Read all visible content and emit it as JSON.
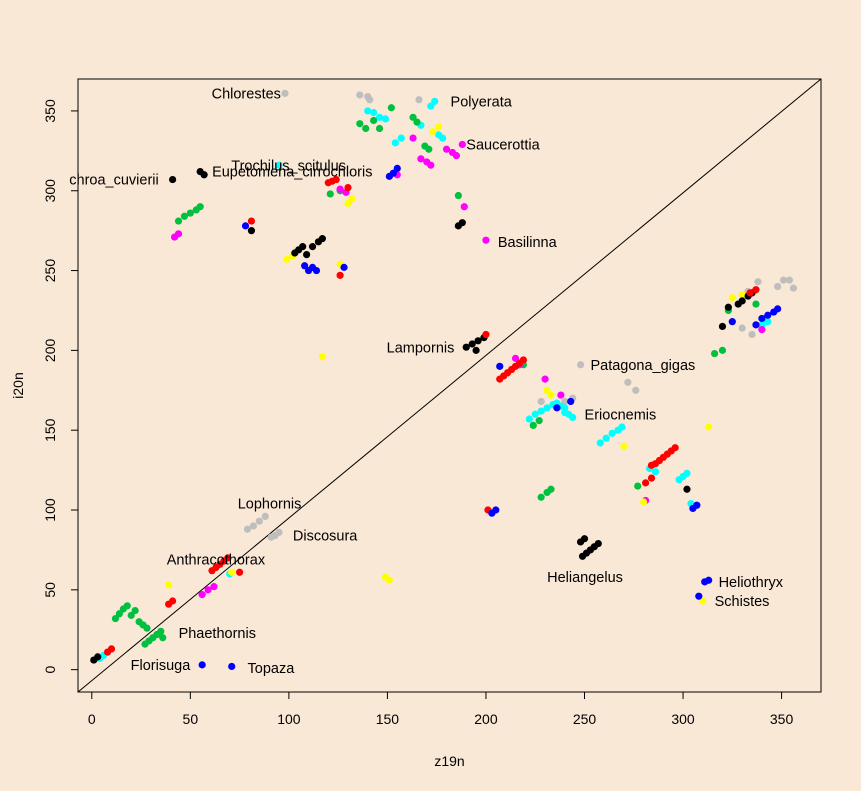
{
  "colors": {
    "background": "#FAE8D6",
    "black": "#000000",
    "red": "#FF0000",
    "green": "#00C040",
    "blue": "#0000FF",
    "cyan": "#00FFFF",
    "magenta": "#FF00FF",
    "yellow": "#FFFF00",
    "gray": "#BEBEBE"
  },
  "chart_data": {
    "type": "scatter",
    "title": "",
    "xlabel": "z19n",
    "ylabel": "i20n",
    "xlim": [
      -7,
      370
    ],
    "ylim": [
      -14,
      370
    ],
    "xticks": [
      0,
      50,
      100,
      150,
      200,
      250,
      300,
      350
    ],
    "yticks": [
      0,
      50,
      100,
      150,
      200,
      250,
      300,
      350
    ],
    "grid": false,
    "reference_line": {
      "type": "identity",
      "from": [
        -7,
        -14
      ],
      "to": [
        370,
        370
      ]
    },
    "annotations": [
      {
        "text": "Chlorestes",
        "x": 98,
        "y": 361,
        "anchor": "end"
      },
      {
        "text": "Polyerata",
        "x": 180,
        "y": 356,
        "anchor": "start"
      },
      {
        "text": "Saucerottia",
        "x": 188,
        "y": 329,
        "anchor": "start"
      },
      {
        "text": "Trochilus_scitulus",
        "x": 131,
        "y": 316,
        "anchor": "end"
      },
      {
        "text": "Eupetomena_cirrochloris",
        "x": 59,
        "y": 312,
        "anchor": "start"
      },
      {
        "text": "chroa_cuvierii",
        "x": 36,
        "y": 307,
        "anchor": "end"
      },
      {
        "text": "Basilinna",
        "x": 204,
        "y": 268,
        "anchor": "start"
      },
      {
        "text": "Lampornis",
        "x": 186,
        "y": 202,
        "anchor": "end"
      },
      {
        "text": "Patagona_gigas",
        "x": 251,
        "y": 191,
        "anchor": "start"
      },
      {
        "text": "Eriocnemis",
        "x": 248,
        "y": 160,
        "anchor": "start"
      },
      {
        "text": "Lophornis",
        "x": 72,
        "y": 104,
        "anchor": "start"
      },
      {
        "text": "Discosura",
        "x": 100,
        "y": 84,
        "anchor": "start"
      },
      {
        "text": "Anthracothorax",
        "x": 36,
        "y": 69,
        "anchor": "start"
      },
      {
        "text": "Heliangelus",
        "x": 229,
        "y": 58,
        "anchor": "start"
      },
      {
        "text": "Heliothryx",
        "x": 316,
        "y": 55,
        "anchor": "start"
      },
      {
        "text": "Schistes",
        "x": 314,
        "y": 43,
        "anchor": "start"
      },
      {
        "text": "Phaethornis",
        "x": 42,
        "y": 23,
        "anchor": "start"
      },
      {
        "text": "Florisuga",
        "x": 52,
        "y": 3,
        "anchor": "end"
      },
      {
        "text": "Topaza",
        "x": 77,
        "y": 1,
        "anchor": "start"
      }
    ],
    "series": [
      {
        "color": "gray",
        "points": [
          [
            98,
            361
          ],
          [
            136,
            360
          ],
          [
            140,
            359
          ],
          [
            141,
            357
          ],
          [
            166,
            357
          ],
          [
            228,
            168
          ],
          [
            240,
            168
          ],
          [
            244,
            170
          ],
          [
            248,
            191
          ],
          [
            272,
            180
          ],
          [
            276,
            175
          ],
          [
            338,
            243
          ],
          [
            333,
            237
          ],
          [
            330,
            214
          ],
          [
            335,
            210
          ],
          [
            348,
            240
          ],
          [
            351,
            244
          ],
          [
            354,
            244
          ],
          [
            356,
            239
          ],
          [
            79,
            88
          ],
          [
            82,
            90
          ],
          [
            85,
            93
          ],
          [
            88,
            96
          ],
          [
            91,
            83
          ],
          [
            93,
            84
          ],
          [
            95,
            86
          ]
        ]
      },
      {
        "color": "cyan",
        "points": [
          [
            140,
            350
          ],
          [
            143,
            349
          ],
          [
            146,
            346
          ],
          [
            149,
            345
          ],
          [
            154,
            330
          ],
          [
            157,
            333
          ],
          [
            167,
            341
          ],
          [
            172,
            353
          ],
          [
            174,
            356
          ],
          [
            176,
            335
          ],
          [
            178,
            333
          ],
          [
            95,
            316
          ],
          [
            222,
            157
          ],
          [
            225,
            160
          ],
          [
            228,
            162
          ],
          [
            231,
            164
          ],
          [
            234,
            166
          ],
          [
            236,
            167
          ],
          [
            238,
            165
          ],
          [
            240,
            164
          ],
          [
            240,
            161
          ],
          [
            242,
            160
          ],
          [
            244,
            158
          ],
          [
            258,
            142
          ],
          [
            261,
            145
          ],
          [
            264,
            148
          ],
          [
            267,
            150
          ],
          [
            269,
            152
          ],
          [
            283,
            126
          ],
          [
            286,
            124
          ],
          [
            298,
            119
          ],
          [
            300,
            121
          ],
          [
            302,
            123
          ],
          [
            304,
            104
          ],
          [
            340,
            216
          ],
          [
            343,
            218
          ],
          [
            70,
            60
          ],
          [
            4,
            7
          ],
          [
            6,
            9
          ]
        ]
      },
      {
        "color": "green",
        "points": [
          [
            136,
            342
          ],
          [
            139,
            339
          ],
          [
            143,
            344
          ],
          [
            146,
            339
          ],
          [
            152,
            352
          ],
          [
            163,
            346
          ],
          [
            165,
            343
          ],
          [
            169,
            328
          ],
          [
            171,
            326
          ],
          [
            186,
            297
          ],
          [
            121,
            298
          ],
          [
            126,
            300
          ],
          [
            44,
            281
          ],
          [
            47,
            284
          ],
          [
            50,
            286
          ],
          [
            53,
            288
          ],
          [
            55,
            290
          ],
          [
            224,
            153
          ],
          [
            227,
            156
          ],
          [
            219,
            191
          ],
          [
            228,
            108
          ],
          [
            231,
            111
          ],
          [
            233,
            113
          ],
          [
            277,
            115
          ],
          [
            320,
            200
          ],
          [
            323,
            225
          ],
          [
            337,
            229
          ],
          [
            316,
            198
          ],
          [
            12,
            32
          ],
          [
            14,
            35
          ],
          [
            16,
            38
          ],
          [
            18,
            40
          ],
          [
            20,
            34
          ],
          [
            22,
            37
          ],
          [
            24,
            30
          ],
          [
            26,
            28
          ],
          [
            28,
            26
          ],
          [
            27,
            16
          ],
          [
            29,
            18
          ],
          [
            31,
            20
          ],
          [
            33,
            22
          ],
          [
            35,
            24
          ],
          [
            36,
            20
          ]
        ]
      },
      {
        "color": "magenta",
        "points": [
          [
            163,
            333
          ],
          [
            167,
            320
          ],
          [
            170,
            318
          ],
          [
            172,
            316
          ],
          [
            180,
            326
          ],
          [
            183,
            324
          ],
          [
            185,
            322
          ],
          [
            188,
            329
          ],
          [
            189,
            290
          ],
          [
            126,
            301
          ],
          [
            129,
            299
          ],
          [
            155,
            310
          ],
          [
            42,
            271
          ],
          [
            44,
            273
          ],
          [
            200,
            269
          ],
          [
            215,
            195
          ],
          [
            217,
            191
          ],
          [
            230,
            182
          ],
          [
            238,
            172
          ],
          [
            281,
            106
          ],
          [
            340,
            213
          ],
          [
            56,
            47
          ],
          [
            59,
            50
          ],
          [
            62,
            52
          ]
        ]
      },
      {
        "color": "yellow",
        "points": [
          [
            173,
            337
          ],
          [
            176,
            340
          ],
          [
            130,
            292
          ],
          [
            132,
            295
          ],
          [
            99,
            257
          ],
          [
            102,
            259
          ],
          [
            117,
            196
          ],
          [
            126,
            254
          ],
          [
            231,
            175
          ],
          [
            233,
            172
          ],
          [
            270,
            140
          ],
          [
            280,
            105
          ],
          [
            313,
            152
          ],
          [
            149,
            58
          ],
          [
            151,
            56
          ],
          [
            39,
            53
          ],
          [
            71,
            61
          ],
          [
            310,
            43
          ],
          [
            325,
            233
          ],
          [
            330,
            235
          ]
        ]
      },
      {
        "color": "black",
        "points": [
          [
            41,
            307
          ],
          [
            55,
            312
          ],
          [
            57,
            310
          ],
          [
            186,
            278
          ],
          [
            188,
            280
          ],
          [
            81,
            275
          ],
          [
            103,
            261
          ],
          [
            105,
            263
          ],
          [
            107,
            265
          ],
          [
            109,
            260
          ],
          [
            112,
            265
          ],
          [
            115,
            268
          ],
          [
            117,
            270
          ],
          [
            190,
            202
          ],
          [
            193,
            204
          ],
          [
            196,
            206
          ],
          [
            199,
            208
          ],
          [
            195,
            200
          ],
          [
            248,
            80
          ],
          [
            250,
            82
          ],
          [
            249,
            71
          ],
          [
            251,
            73
          ],
          [
            253,
            75
          ],
          [
            255,
            77
          ],
          [
            257,
            79
          ],
          [
            302,
            113
          ],
          [
            320,
            215
          ],
          [
            323,
            227
          ],
          [
            328,
            229
          ],
          [
            330,
            231
          ],
          [
            333,
            234
          ],
          [
            335,
            236
          ],
          [
            1,
            6
          ],
          [
            3,
            8
          ]
        ]
      },
      {
        "color": "red",
        "points": [
          [
            120,
            305
          ],
          [
            122,
            306
          ],
          [
            124,
            307
          ],
          [
            130,
            302
          ],
          [
            81,
            281
          ],
          [
            126,
            247
          ],
          [
            200,
            210
          ],
          [
            207,
            182
          ],
          [
            209,
            184
          ],
          [
            211,
            186
          ],
          [
            213,
            188
          ],
          [
            215,
            190
          ],
          [
            217,
            192
          ],
          [
            219,
            194
          ],
          [
            201,
            100
          ],
          [
            281,
            117
          ],
          [
            284,
            120
          ],
          [
            284,
            128
          ],
          [
            286,
            129
          ],
          [
            288,
            131
          ],
          [
            290,
            133
          ],
          [
            292,
            135
          ],
          [
            294,
            137
          ],
          [
            296,
            139
          ],
          [
            334,
            236
          ],
          [
            337,
            238
          ],
          [
            61,
            62
          ],
          [
            63,
            64
          ],
          [
            65,
            66
          ],
          [
            67,
            68
          ],
          [
            69,
            70
          ],
          [
            75,
            61
          ],
          [
            39,
            41
          ],
          [
            41,
            43
          ],
          [
            8,
            11
          ],
          [
            10,
            13
          ]
        ]
      },
      {
        "color": "blue",
        "points": [
          [
            151,
            309
          ],
          [
            153,
            311
          ],
          [
            155,
            314
          ],
          [
            78,
            278
          ],
          [
            108,
            253
          ],
          [
            110,
            250
          ],
          [
            112,
            252
          ],
          [
            114,
            250
          ],
          [
            128,
            252
          ],
          [
            207,
            190
          ],
          [
            203,
            98
          ],
          [
            205,
            100
          ],
          [
            243,
            168
          ],
          [
            236,
            164
          ],
          [
            305,
            101
          ],
          [
            307,
            103
          ],
          [
            337,
            216
          ],
          [
            340,
            220
          ],
          [
            343,
            222
          ],
          [
            346,
            224
          ],
          [
            348,
            226
          ],
          [
            325,
            218
          ],
          [
            308,
            46
          ],
          [
            311,
            55
          ],
          [
            313,
            56
          ],
          [
            56,
            3
          ],
          [
            71,
            2
          ]
        ]
      }
    ]
  }
}
